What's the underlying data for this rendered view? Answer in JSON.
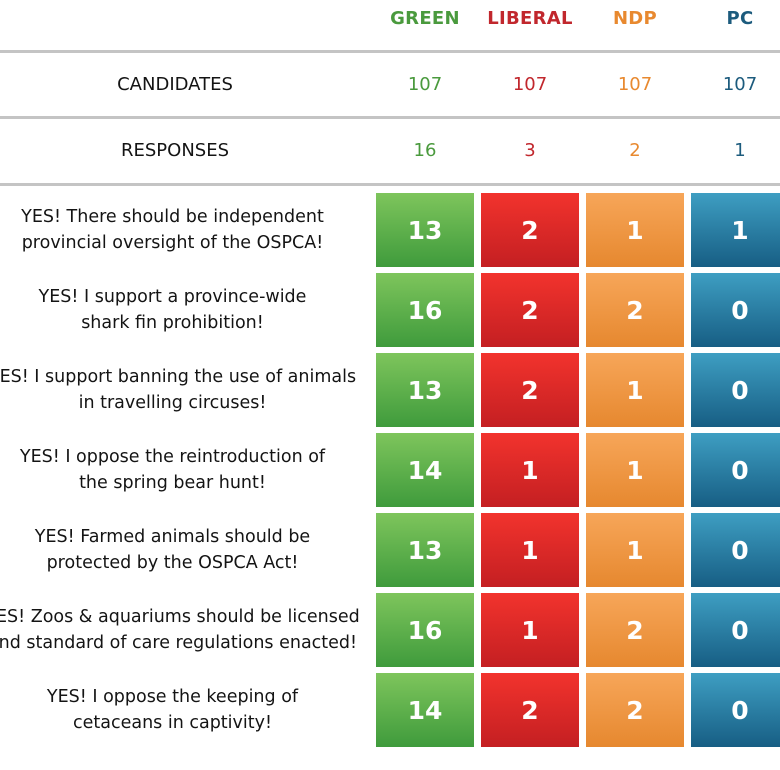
{
  "chart_data": {
    "type": "table",
    "parties": [
      {
        "name": "GREEN",
        "color": "#4a9a3d"
      },
      {
        "name": "LIBERAL",
        "color": "#c1272d"
      },
      {
        "name": "NDP",
        "color": "#e8892f"
      },
      {
        "name": "PC",
        "color": "#1c5b7d"
      }
    ],
    "stats": [
      {
        "label": "CANDIDATES",
        "values": [
          107,
          107,
          107,
          107
        ]
      },
      {
        "label": "RESPONSES",
        "values": [
          16,
          3,
          2,
          1
        ]
      }
    ],
    "questions": [
      {
        "line1": "YES! There should be independent",
        "line2": "provincial oversight of the OSPCA!",
        "values": [
          13,
          2,
          1,
          1
        ]
      },
      {
        "line1": "YES! I support a province-wide",
        "line2": "shark fin prohibition!",
        "values": [
          16,
          2,
          2,
          0
        ]
      },
      {
        "line1": "YES! I support banning the use of animals",
        "line2": "in travelling circuses!",
        "values": [
          13,
          2,
          1,
          0
        ]
      },
      {
        "line1": "YES! I oppose the reintroduction of",
        "line2": "the spring bear hunt!",
        "values": [
          14,
          1,
          1,
          0
        ]
      },
      {
        "line1": "YES! Farmed animals should be",
        "line2": "protected by the OSPCA Act!",
        "values": [
          13,
          1,
          1,
          0
        ]
      },
      {
        "line1": "YES! Zoos & aquariums should be licensed",
        "line2": "and standard of care regulations enacted!",
        "values": [
          16,
          1,
          2,
          0
        ]
      },
      {
        "line1": "YES! I oppose the keeping of",
        "line2": "cetaceans in captivity!",
        "values": [
          14,
          2,
          2,
          0
        ]
      }
    ]
  }
}
